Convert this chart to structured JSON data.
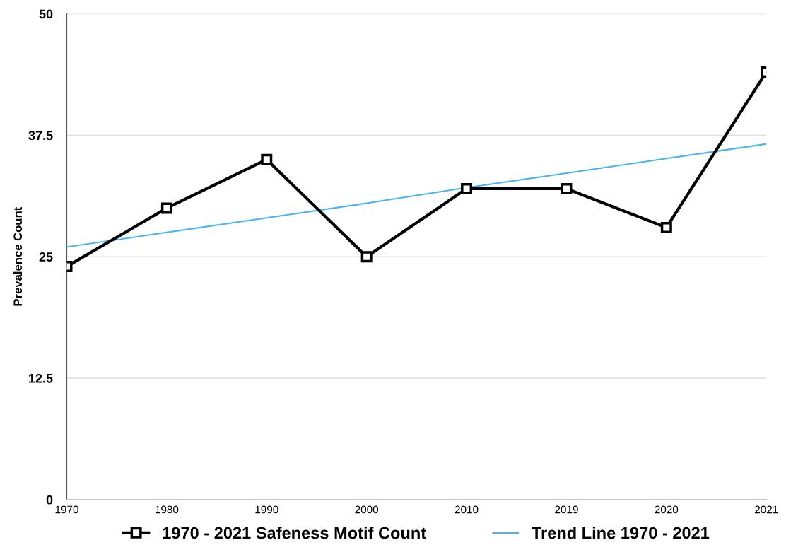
{
  "chart_data": {
    "type": "line",
    "ylabel": "Prevalence Count",
    "categories": [
      "1970",
      "1980",
      "1990",
      "2000",
      "2010",
      "2019",
      "2020",
      "2021"
    ],
    "series": [
      {
        "name": "1970 - 2021 Safeness Motif Count",
        "color": "#000000",
        "marker": "square",
        "values": [
          24,
          30,
          35,
          25,
          32,
          32,
          28,
          44
        ]
      },
      {
        "name": "Trend Line 1970 - 2021",
        "color": "#4ab3f0",
        "marker": "none",
        "values": [
          26,
          27.5,
          29,
          30.5,
          32.1,
          33.6,
          35.1,
          36.6
        ]
      }
    ],
    "ylim": [
      0,
      50
    ],
    "yticks": [
      0,
      12.5,
      25,
      37.5,
      50
    ],
    "grid": "y",
    "legend": "bottom"
  }
}
